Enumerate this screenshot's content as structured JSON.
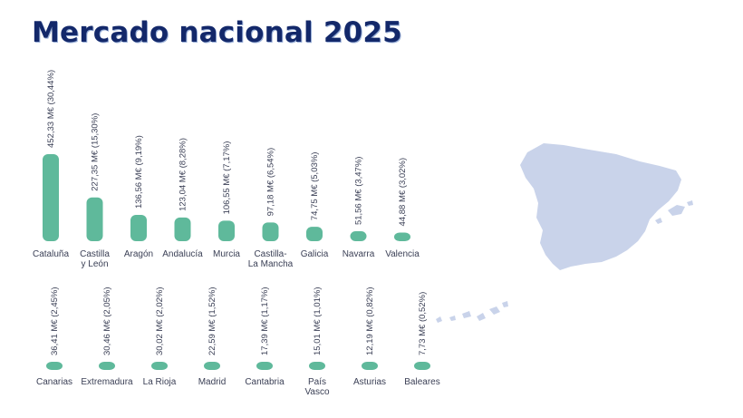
{
  "page": {
    "title": "Mercado nacional 2025"
  },
  "colors": {
    "bar": "#5fb99b",
    "title": "#13286a",
    "map": "#c9d3ea"
  },
  "icons": {
    "map": "spain-map-icon"
  },
  "chart_data": [
    {
      "type": "bar",
      "title": "",
      "xlabel": "",
      "ylabel": "",
      "categories": [
        [
          "Cataluña"
        ],
        [
          "Castilla",
          "y León"
        ],
        [
          "Aragón"
        ],
        [
          "Andalucía"
        ],
        [
          "Murcia"
        ],
        [
          "Castilla-",
          "La Mancha"
        ],
        [
          "Galicia"
        ],
        [
          "Navarra"
        ],
        [
          "Valencia"
        ]
      ],
      "values": [
        452.33,
        227.35,
        136.56,
        123.04,
        106.55,
        97.18,
        74.75,
        51.56,
        44.88
      ],
      "data_labels": [
        "452,33 M€ (30,44%)",
        "227,35 M€ (15,30%)",
        "136,56 M€ (9,19%)",
        "123,04 M€ (8,28%)",
        "106,55 M€ (7,17%)",
        "97,18 M€ (6,54%)",
        "74,75 M€ (5,03%)",
        "51,56 M€ (3,47%)",
        "44,88 M€ (3,02%)"
      ]
    },
    {
      "type": "bar",
      "title": "",
      "xlabel": "",
      "ylabel": "",
      "categories": [
        [
          "Canarias"
        ],
        [
          "Extremadura"
        ],
        [
          "La Rioja"
        ],
        [
          "Madrid"
        ],
        [
          "Cantabria"
        ],
        [
          "País",
          "Vasco"
        ],
        [
          "Asturias"
        ],
        [
          "Baleares"
        ]
      ],
      "values": [
        36.41,
        30.46,
        30.02,
        22.59,
        17.39,
        15.01,
        12.19,
        7.73
      ],
      "data_labels": [
        "36,41 M€ (2,45%)",
        "30,46 M€ (2,05%)",
        "30,02 M€ (2,02%)",
        "22,59 M€ (1,52%)",
        "17,39 M€ (1,17%)",
        "15,01 M€ (1,01%)",
        "12,19 M€ (0,82%)",
        "7,73 M€ (0,52%)"
      ]
    }
  ]
}
